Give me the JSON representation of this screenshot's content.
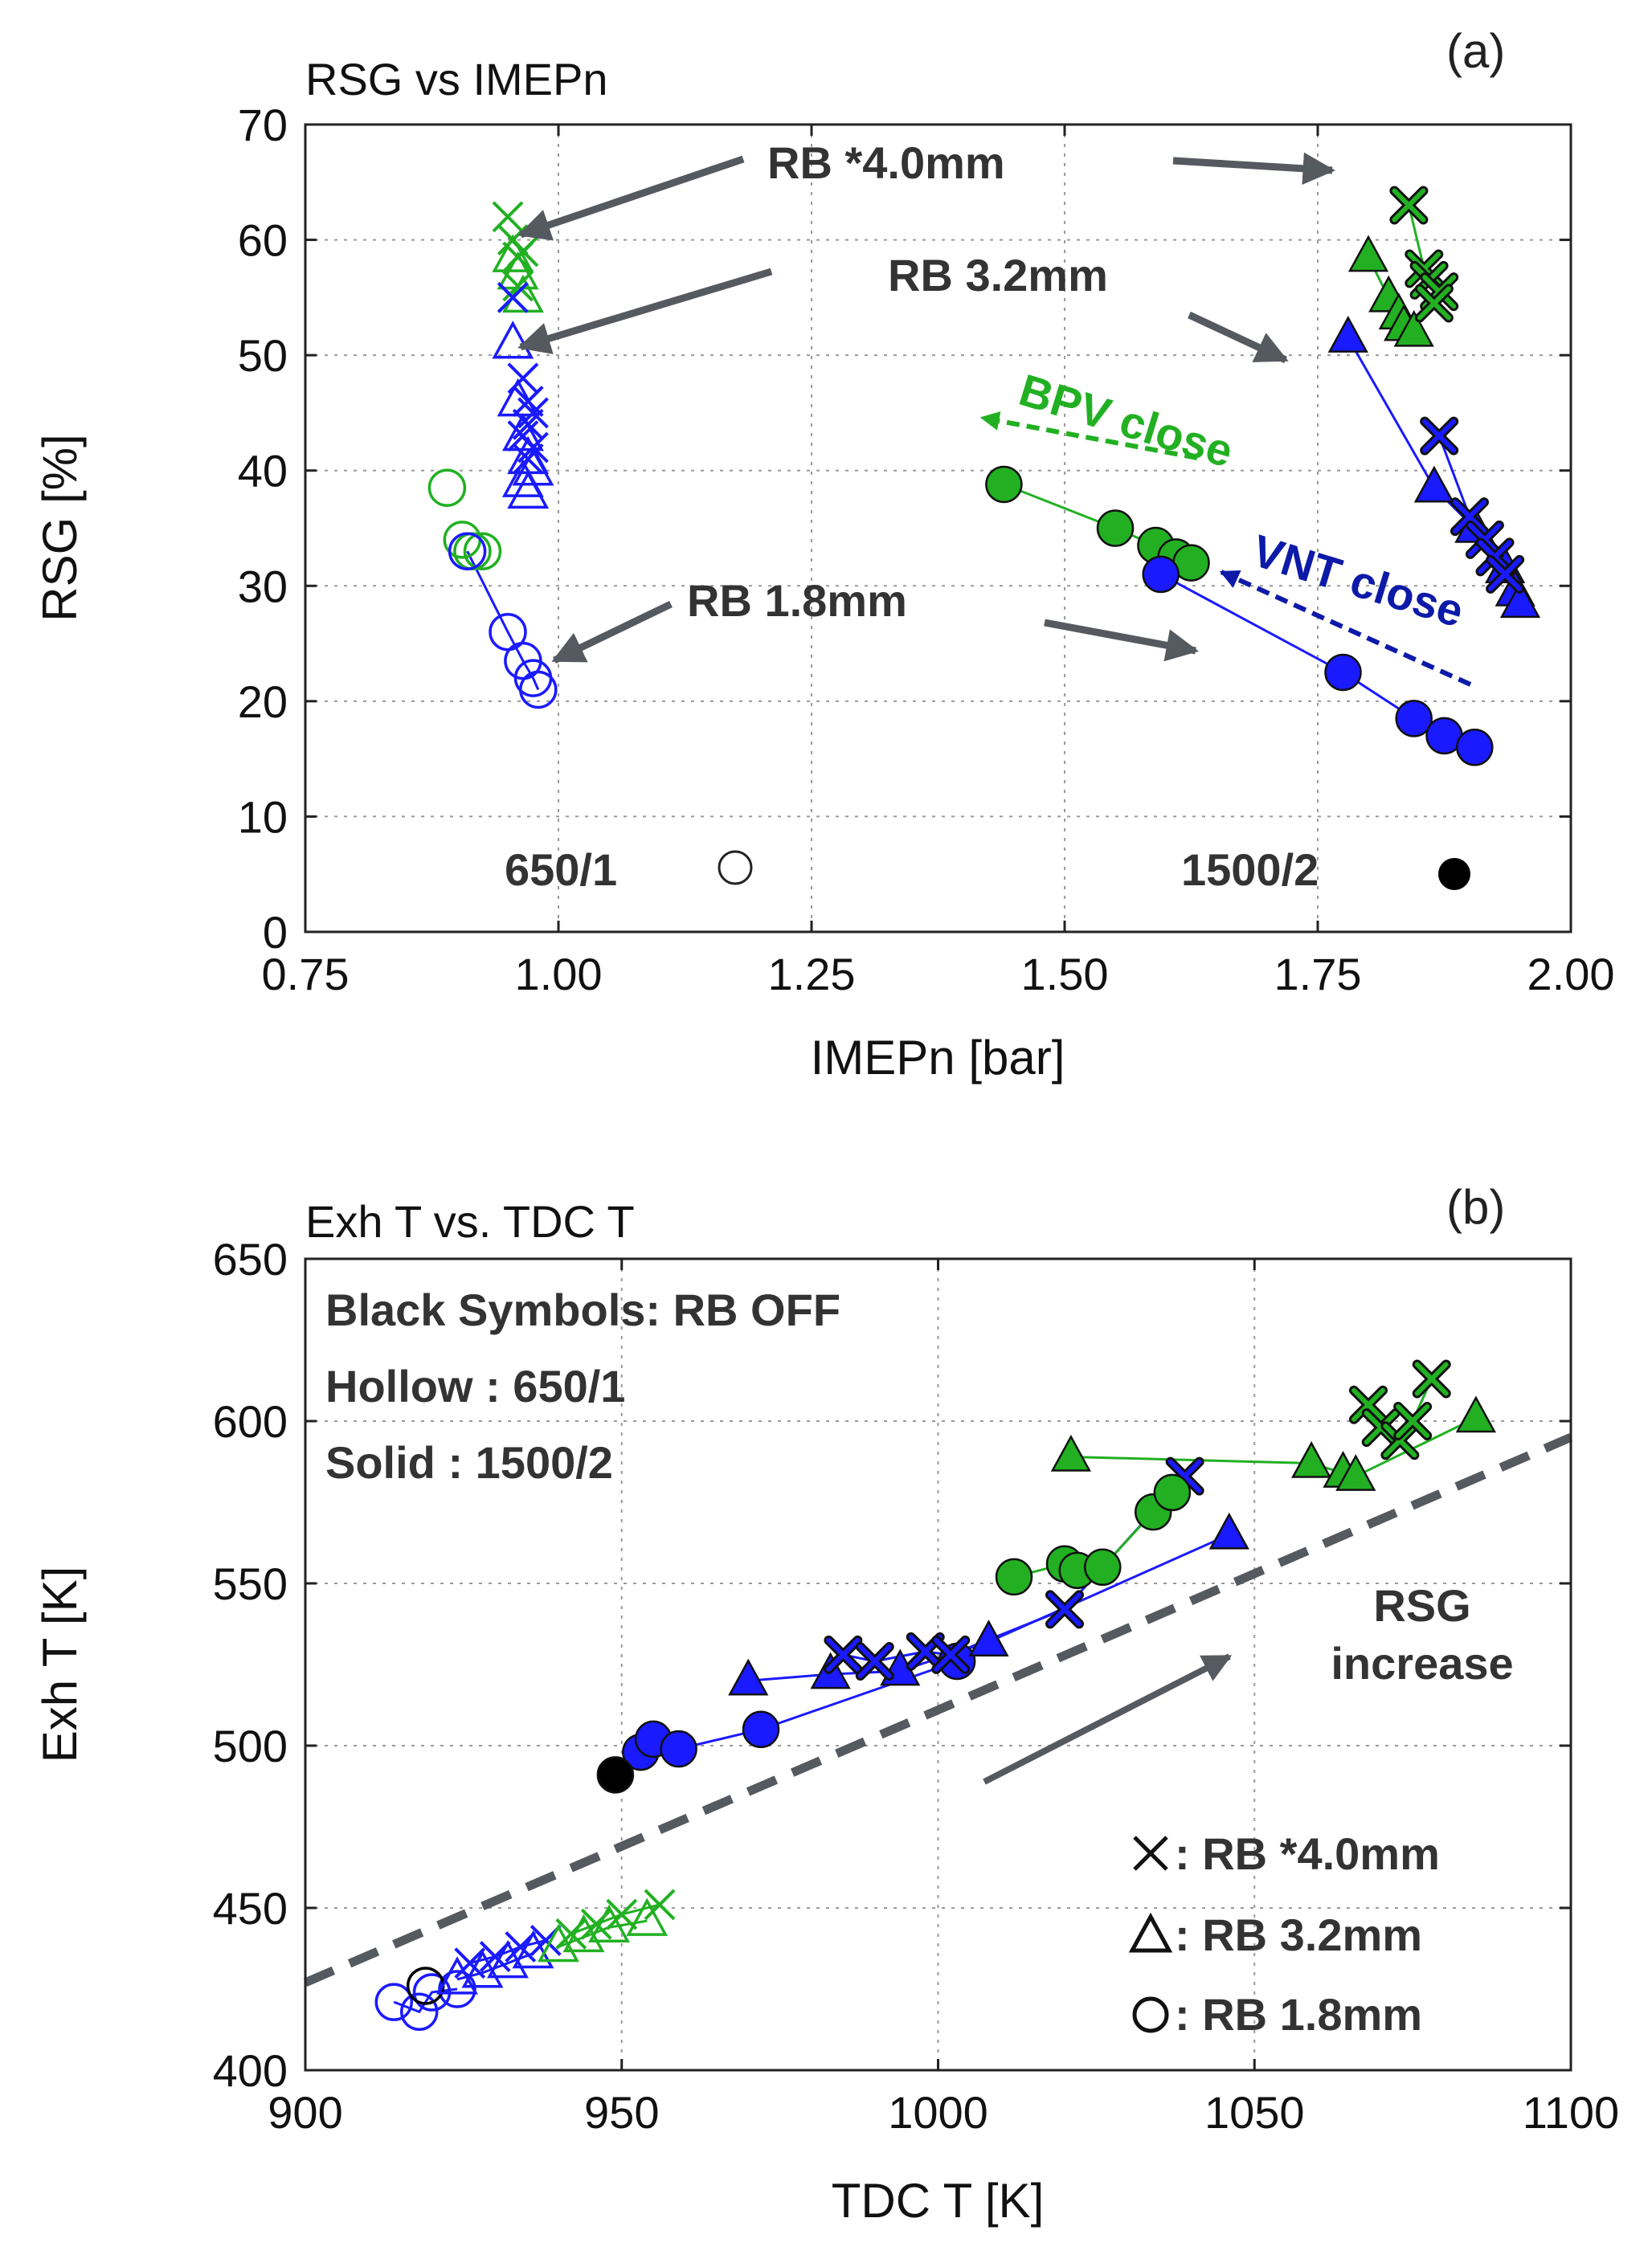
{
  "colors": {
    "blue": "#1a1aff",
    "green": "#22b022",
    "black": "#000000",
    "darkblue": "#0d1aa8",
    "arrow": "#555a60",
    "grid": "#9a9a9a"
  },
  "chart_data": [
    {
      "panel_label": "(a)",
      "title": "RSG vs IMEPn",
      "type": "scatter",
      "xlabel": "IMEPn [bar]",
      "ylabel": "RSG [%]",
      "xlim": [
        0.75,
        2.0
      ],
      "ylim": [
        0,
        70
      ],
      "xticks": [
        "0.75",
        "1.00",
        "1.25",
        "1.50",
        "1.75",
        "2.00"
      ],
      "yticks": [
        "0",
        "10",
        "20",
        "30",
        "40",
        "50",
        "60",
        "70"
      ],
      "grid": true,
      "annotations": [
        "RB *4.0mm",
        "RB 3.2mm",
        "RB 1.8mm",
        "BPV close",
        "VNT close",
        "650/1",
        "1500/2"
      ],
      "series": [
        {
          "color": "green",
          "marker": "cross",
          "fill": false,
          "line": false,
          "x": [
            0.95,
            0.955,
            0.96,
            0.965,
            0.96,
            0.955
          ],
          "y": [
            62,
            60,
            58.5,
            59,
            56,
            55
          ]
        },
        {
          "color": "green",
          "marker": "triangle",
          "fill": false,
          "line": false,
          "x": [
            0.955,
            0.96,
            0.965
          ],
          "y": [
            58.5,
            57,
            55
          ]
        },
        {
          "color": "blue",
          "marker": "cross",
          "fill": false,
          "line": false,
          "x": [
            0.955,
            0.965,
            0.97,
            0.975,
            0.97,
            0.965,
            0.975,
            0.97
          ],
          "y": [
            55,
            48,
            46,
            45,
            44,
            43,
            42,
            41
          ]
        },
        {
          "color": "blue",
          "marker": "triangle",
          "fill": false,
          "line": false,
          "x": [
            0.955,
            0.96,
            0.965,
            0.97,
            0.975,
            0.965,
            0.97
          ],
          "y": [
            51,
            46,
            43,
            41,
            40,
            39,
            38
          ]
        },
        {
          "color": "green",
          "marker": "circle",
          "fill": false,
          "line": false,
          "x": [
            0.89,
            0.905,
            0.915,
            0.925
          ],
          "y": [
            38.5,
            34,
            33,
            33
          ]
        },
        {
          "color": "blue",
          "marker": "circle",
          "fill": false,
          "line": true,
          "x": [
            0.91,
            0.95,
            0.965,
            0.975,
            0.98
          ],
          "y": [
            33,
            26,
            23.5,
            22,
            21
          ]
        },
        {
          "color": "green",
          "marker": "circle",
          "fill": true,
          "line": true,
          "x": [
            1.44,
            1.55,
            1.59,
            1.61,
            1.625
          ],
          "y": [
            38.8,
            35,
            33.5,
            32.5,
            32
          ]
        },
        {
          "color": "blue",
          "marker": "circle",
          "fill": true,
          "line": true,
          "x": [
            1.595,
            1.775,
            1.845,
            1.875,
            1.905
          ],
          "y": [
            31,
            22.5,
            18.5,
            17,
            16
          ]
        },
        {
          "color": "green",
          "marker": "triangle",
          "fill": true,
          "line": true,
          "x": [
            1.8,
            1.82,
            1.83,
            1.835,
            1.845
          ],
          "y": [
            58.5,
            55,
            53.5,
            52.5,
            52
          ]
        },
        {
          "color": "green",
          "marker": "cross",
          "fill": true,
          "line": true,
          "x": [
            1.84,
            1.855,
            1.86,
            1.87,
            1.865
          ],
          "y": [
            63,
            57.5,
            56.5,
            55.5,
            54.5
          ]
        },
        {
          "color": "blue",
          "marker": "triangle",
          "fill": true,
          "line": true,
          "x": [
            1.78,
            1.865,
            1.905,
            1.935,
            1.945,
            1.95
          ],
          "y": [
            51.5,
            38.5,
            35,
            31.5,
            29.5,
            28.5
          ]
        },
        {
          "color": "blue",
          "marker": "cross",
          "fill": true,
          "line": true,
          "x": [
            1.87,
            1.9,
            1.915,
            1.925,
            1.935
          ],
          "y": [
            43,
            36,
            34,
            32.5,
            31
          ]
        }
      ],
      "legend_markers": [
        {
          "label": "650/1",
          "marker": "circle",
          "fill": false,
          "color": "black"
        },
        {
          "label": "1500/2",
          "marker": "circle",
          "fill": true,
          "color": "black"
        }
      ]
    },
    {
      "panel_label": "(b)",
      "title": "Exh T vs. TDC T",
      "type": "scatter",
      "xlabel": "TDC T [K]",
      "ylabel": "Exh T [K]",
      "xlim": [
        900,
        1100
      ],
      "ylim": [
        400,
        650
      ],
      "xticks": [
        "900",
        "950",
        "1000",
        "1050",
        "1100"
      ],
      "yticks": [
        "400",
        "450",
        "500",
        "550",
        "600",
        "650"
      ],
      "grid": true,
      "annotations": [
        "RSG",
        "increase"
      ],
      "notes": [
        "Black Symbols: RB OFF",
        "Hollow : 650/1",
        "Solid : 1500/2"
      ],
      "legend": [
        {
          "marker": "cross",
          "label": ": RB *4.0mm"
        },
        {
          "marker": "triangle",
          "label": ": RB 3.2mm"
        },
        {
          "marker": "circle",
          "label": ": RB 1.8mm"
        }
      ],
      "reference_line": {
        "x": [
          900,
          1100
        ],
        "y": [
          427,
          595
        ]
      },
      "series": [
        {
          "color": "blue",
          "marker": "circle",
          "fill": false,
          "line": true,
          "x": [
            914,
            918,
            920,
            924
          ],
          "y": [
            421,
            418,
            424,
            425
          ]
        },
        {
          "color": "black",
          "marker": "circle",
          "fill": false,
          "line": false,
          "x": [
            919
          ],
          "y": [
            426
          ]
        },
        {
          "color": "blue",
          "marker": "triangle",
          "fill": false,
          "line": true,
          "x": [
            924,
            928,
            932,
            936
          ],
          "y": [
            428,
            430,
            433,
            436
          ]
        },
        {
          "color": "blue",
          "marker": "cross",
          "fill": false,
          "line": true,
          "x": [
            926,
            930,
            934,
            938
          ],
          "y": [
            433,
            435,
            438,
            440
          ]
        },
        {
          "color": "green",
          "marker": "triangle",
          "fill": false,
          "line": true,
          "x": [
            940,
            944,
            948,
            954
          ],
          "y": [
            438,
            441,
            444,
            446
          ]
        },
        {
          "color": "green",
          "marker": "cross",
          "fill": false,
          "line": true,
          "x": [
            942,
            946,
            950,
            956
          ],
          "y": [
            442,
            445,
            448,
            451
          ]
        },
        {
          "color": "blue",
          "marker": "circle",
          "fill": true,
          "line": true,
          "x": [
            953,
            955,
            959,
            972,
            1003
          ],
          "y": [
            498,
            502,
            499,
            505,
            526
          ]
        },
        {
          "color": "black",
          "marker": "circle",
          "fill": true,
          "line": false,
          "x": [
            949
          ],
          "y": [
            491
          ]
        },
        {
          "color": "blue",
          "marker": "triangle",
          "fill": true,
          "line": true,
          "x": [
            970,
            983,
            994,
            1008,
            1046
          ],
          "y": [
            520,
            522,
            523,
            532,
            565
          ]
        },
        {
          "color": "blue",
          "marker": "cross",
          "fill": true,
          "line": true,
          "x": [
            985,
            990,
            998,
            1002,
            1020,
            1039
          ],
          "y": [
            528,
            526,
            529,
            528,
            542,
            583
          ]
        },
        {
          "color": "green",
          "marker": "circle",
          "fill": true,
          "line": true,
          "x": [
            1012,
            1020,
            1022,
            1026,
            1034,
            1037
          ],
          "y": [
            552,
            556,
            554,
            555,
            572,
            578
          ]
        },
        {
          "color": "green",
          "marker": "triangle",
          "fill": true,
          "line": true,
          "x": [
            1021,
            1059,
            1064,
            1066,
            1085
          ],
          "y": [
            589,
            587,
            584,
            583,
            601
          ]
        },
        {
          "color": "green",
          "marker": "cross",
          "fill": true,
          "line": true,
          "x": [
            1068,
            1070,
            1073,
            1075,
            1078
          ],
          "y": [
            605,
            598,
            594,
            600,
            613
          ]
        }
      ]
    }
  ]
}
